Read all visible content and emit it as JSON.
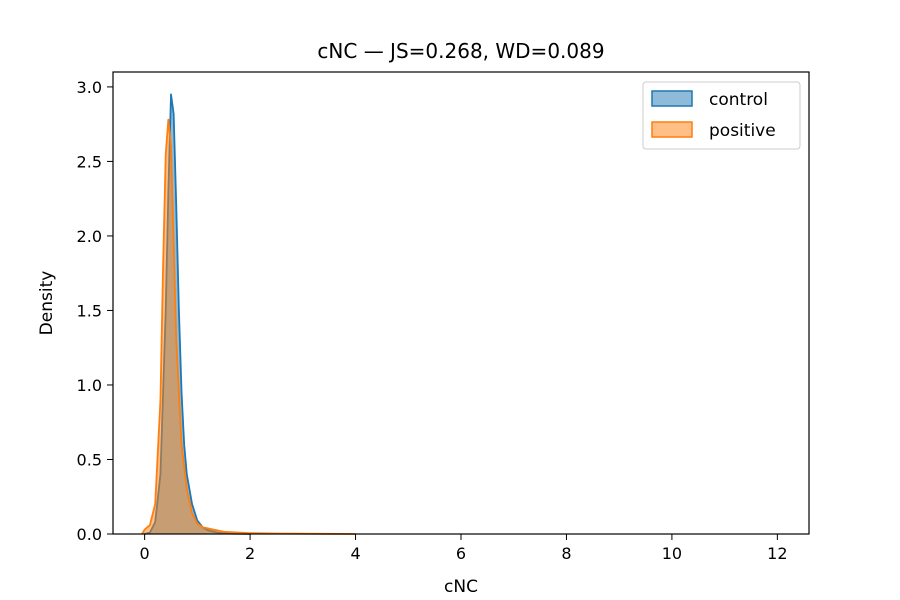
{
  "chart_data": {
    "type": "area",
    "title": "cNC — JS=0.268, WD=0.089",
    "xlabel": "cNC",
    "ylabel": "Density",
    "xlim": [
      -0.6,
      12.6
    ],
    "ylim": [
      0,
      3.1
    ],
    "xticks": [
      0,
      2,
      4,
      6,
      8,
      10,
      12
    ],
    "yticks": [
      0.0,
      0.5,
      1.0,
      1.5,
      2.0,
      2.5,
      3.0
    ],
    "grid": false,
    "legend_position": "top-right",
    "series": [
      {
        "name": "control",
        "line_color": "#1f77b4",
        "fill_color": "#1f77b4",
        "fill_opacity": 0.5,
        "x": [
          0.0,
          0.1,
          0.2,
          0.3,
          0.4,
          0.45,
          0.5,
          0.55,
          0.6,
          0.65,
          0.7,
          0.75,
          0.8,
          0.9,
          1.0,
          1.1,
          1.2,
          1.4,
          1.6,
          2.0
        ],
        "y": [
          0.0,
          0.01,
          0.08,
          0.4,
          1.5,
          2.3,
          2.95,
          2.82,
          2.2,
          1.5,
          0.95,
          0.6,
          0.4,
          0.2,
          0.09,
          0.045,
          0.025,
          0.008,
          0.003,
          0.0
        ]
      },
      {
        "name": "positive",
        "line_color": "#ff7f0e",
        "fill_color": "#ff7f0e",
        "fill_opacity": 0.5,
        "x": [
          -0.05,
          0.0,
          0.1,
          0.2,
          0.3,
          0.35,
          0.4,
          0.45,
          0.5,
          0.55,
          0.6,
          0.7,
          0.8,
          0.9,
          1.0,
          1.1,
          1.3,
          1.5,
          2.0,
          2.5,
          3.0,
          4.0
        ],
        "y": [
          0.0,
          0.03,
          0.06,
          0.2,
          0.9,
          1.8,
          2.55,
          2.78,
          2.6,
          1.95,
          1.3,
          0.6,
          0.3,
          0.14,
          0.07,
          0.045,
          0.03,
          0.015,
          0.006,
          0.003,
          0.002,
          0.0
        ]
      }
    ]
  }
}
